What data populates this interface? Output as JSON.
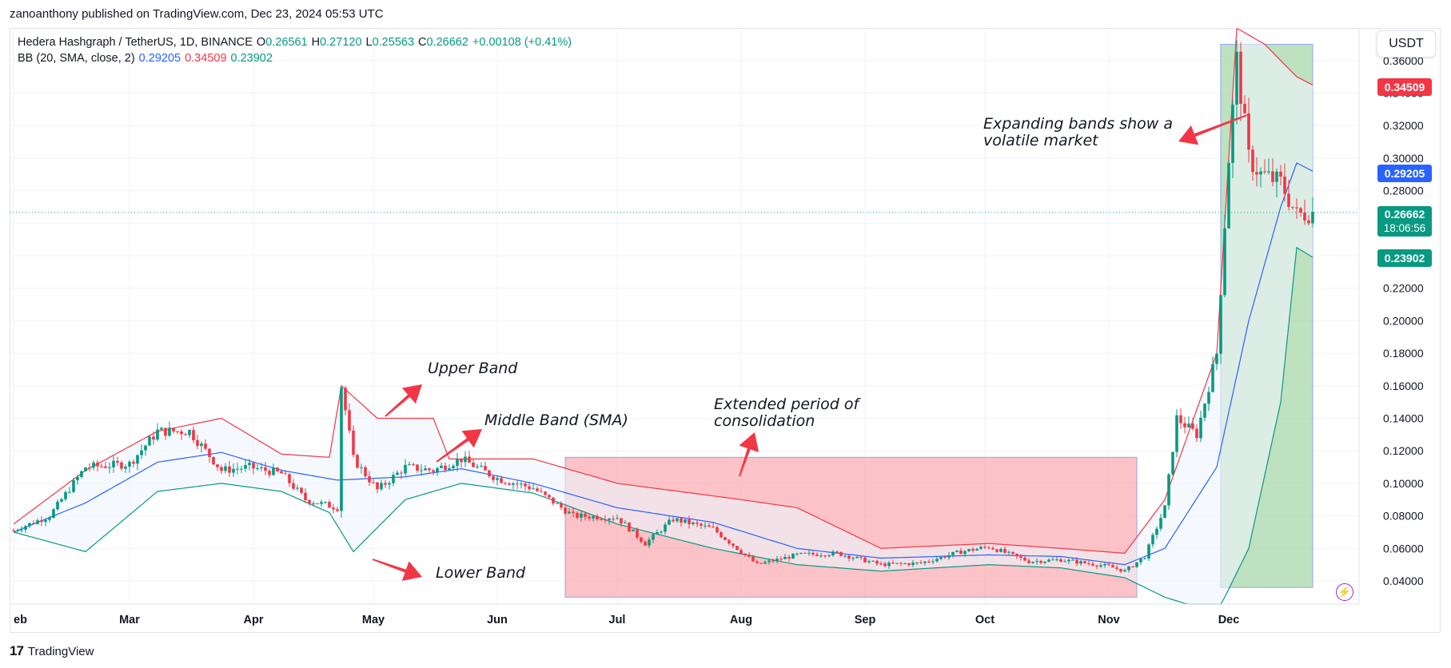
{
  "header": {
    "credit": "zanoanthony published on TradingView.com, Dec 23, 2024 05:53 UTC"
  },
  "legend": {
    "symbol": "Hedera Hashgraph / TetherUS, 1D, BINANCE",
    "o_label": "O",
    "o": "0.26561",
    "h_label": "H",
    "h": "0.27120",
    "l_label": "L",
    "l": "0.25563",
    "c_label": "C",
    "c": "0.26662",
    "change": "+0.00108 (+0.41%)",
    "bb_label": "BB (20, SMA, close, 2)",
    "bb_mid": "0.29205",
    "bb_upper": "0.34509",
    "bb_lower": "0.23902"
  },
  "currency": "USDT",
  "price_tags": {
    "upper": "0.34509",
    "middle": "0.29205",
    "last": "0.26662",
    "countdown": "18:06:56",
    "lower": "0.23902"
  },
  "annotations": {
    "upper_band": "Upper Band",
    "middle_band": "Middle Band (SMA)",
    "lower_band": "Lower Band",
    "consolidation_1": "Extended period of",
    "consolidation_2": "consolidation",
    "expanding_1": "Expanding bands show a",
    "expanding_2": "volatile market"
  },
  "footer": {
    "brand": "TradingView"
  },
  "colors": {
    "up": "#089981",
    "down": "#f23645",
    "sma": "#2962ff",
    "upper": "#f23645",
    "lower": "#089981",
    "band_fill": "#eef5fd",
    "red_zone": "#f9aab1",
    "green_zone": "#a5d6a7",
    "arrow": "#f23645"
  },
  "chart_data": {
    "type": "candlestick",
    "title": "Hedera Hashgraph / TetherUS, 1D, BINANCE",
    "ylim": [
      0.03,
      0.37
    ],
    "y_ticks": [
      "0.04000",
      "0.06000",
      "0.08000",
      "0.10000",
      "0.12000",
      "0.14000",
      "0.16000",
      "0.18000",
      "0.20000",
      "0.22000",
      "0.24000",
      "0.26000",
      "0.28000",
      "0.30000",
      "0.32000",
      "0.34000",
      "0.36000"
    ],
    "x_ticks": [
      "eb",
      "Mar",
      "Apr",
      "May",
      "Jun",
      "Jul",
      "Aug",
      "Sep",
      "Oct",
      "Nov",
      "Dec"
    ],
    "grid": true,
    "highlight_zones": [
      {
        "name": "consolidation",
        "from": "Jun 18",
        "to": "Nov 8",
        "y_range": [
          0.03,
          0.116
        ],
        "color": "red"
      },
      {
        "name": "volatile",
        "from": "Nov 29",
        "to": "Dec 22",
        "y_range": [
          0.036,
          0.37
        ],
        "color": "green"
      }
    ],
    "series": [
      {
        "name": "Price (close)",
        "control": [
          [
            "Feb 1",
            0.071
          ],
          [
            "Feb 10",
            0.08
          ],
          [
            "Feb 19",
            0.11
          ],
          [
            "Mar 1",
            0.112
          ],
          [
            "Mar 8",
            0.132
          ],
          [
            "Mar 16",
            0.132
          ],
          [
            "Mar 24",
            0.108
          ],
          [
            "Mar 31",
            0.11
          ],
          [
            "Apr 8",
            0.106
          ],
          [
            "Apr 14",
            0.09
          ],
          [
            "Apr 22",
            0.085
          ],
          [
            "Apr 23",
            0.16
          ],
          [
            "Apr 26",
            0.115
          ],
          [
            "May 2",
            0.096
          ],
          [
            "May 9",
            0.11
          ],
          [
            "May 16",
            0.108
          ],
          [
            "May 23",
            0.115
          ],
          [
            "Jun 1",
            0.103
          ],
          [
            "Jun 10",
            0.097
          ],
          [
            "Jun 20",
            0.08
          ],
          [
            "Jul 1",
            0.079
          ],
          [
            "Jul 8",
            0.063
          ],
          [
            "Jul 15",
            0.078
          ],
          [
            "Jul 25",
            0.072
          ],
          [
            "Aug 5",
            0.05
          ],
          [
            "Aug 15",
            0.056
          ],
          [
            "Aug 25",
            0.057
          ],
          [
            "Sep 5",
            0.05
          ],
          [
            "Sep 15",
            0.051
          ],
          [
            "Sep 25",
            0.058
          ],
          [
            "Oct 2",
            0.061
          ],
          [
            "Oct 12",
            0.052
          ],
          [
            "Oct 20",
            0.053
          ],
          [
            "Nov 1",
            0.049
          ],
          [
            "Nov 5",
            0.046
          ],
          [
            "Nov 10",
            0.055
          ],
          [
            "Nov 15",
            0.085
          ],
          [
            "Nov 18",
            0.14
          ],
          [
            "Nov 23",
            0.13
          ],
          [
            "Nov 28",
            0.18
          ],
          [
            "Dec 1",
            0.3
          ],
          [
            "Dec 3",
            0.36
          ],
          [
            "Dec 6",
            0.3
          ],
          [
            "Dec 9",
            0.29
          ],
          [
            "Dec 14",
            0.285
          ],
          [
            "Dec 18",
            0.265
          ],
          [
            "Dec 22",
            0.2666
          ]
        ]
      },
      {
        "name": "BB basis",
        "control": [
          [
            "Feb 1",
            0.07
          ],
          [
            "Feb 19",
            0.088
          ],
          [
            "Mar 8",
            0.113
          ],
          [
            "Mar 24",
            0.119
          ],
          [
            "Apr 8",
            0.108
          ],
          [
            "Apr 22",
            0.102
          ],
          [
            "May 9",
            0.104
          ],
          [
            "May 23",
            0.109
          ],
          [
            "Jun 10",
            0.1
          ],
          [
            "Jul 1",
            0.085
          ],
          [
            "Jul 25",
            0.076
          ],
          [
            "Aug 15",
            0.06
          ],
          [
            "Sep 5",
            0.054
          ],
          [
            "Oct 2",
            0.056
          ],
          [
            "Oct 20",
            0.055
          ],
          [
            "Nov 5",
            0.05
          ],
          [
            "Nov 15",
            0.06
          ],
          [
            "Nov 28",
            0.11
          ],
          [
            "Dec 6",
            0.2
          ],
          [
            "Dec 14",
            0.27
          ],
          [
            "Dec 18",
            0.297
          ],
          [
            "Dec 22",
            0.292
          ]
        ]
      },
      {
        "name": "BB upper",
        "control": [
          [
            "Feb 1",
            0.075
          ],
          [
            "Feb 19",
            0.108
          ],
          [
            "Mar 8",
            0.132
          ],
          [
            "Mar 24",
            0.14
          ],
          [
            "Apr 8",
            0.118
          ],
          [
            "Apr 20",
            0.116
          ],
          [
            "Apr 23",
            0.16
          ],
          [
            "May 2",
            0.14
          ],
          [
            "May 16",
            0.14
          ],
          [
            "May 20",
            0.115
          ],
          [
            "Jun 10",
            0.115
          ],
          [
            "Jul 1",
            0.1
          ],
          [
            "Aug 1",
            0.09
          ],
          [
            "Aug 15",
            0.085
          ],
          [
            "Sep 5",
            0.06
          ],
          [
            "Oct 2",
            0.063
          ],
          [
            "Oct 20",
            0.06
          ],
          [
            "Nov 5",
            0.057
          ],
          [
            "Nov 15",
            0.09
          ],
          [
            "Nov 28",
            0.18
          ],
          [
            "Dec 3",
            0.38
          ],
          [
            "Dec 10",
            0.37
          ],
          [
            "Dec 18",
            0.35
          ],
          [
            "Dec 22",
            0.345
          ]
        ]
      },
      {
        "name": "BB lower",
        "control": [
          [
            "Feb 1",
            0.07
          ],
          [
            "Feb 19",
            0.058
          ],
          [
            "Mar 8",
            0.095
          ],
          [
            "Mar 24",
            0.1
          ],
          [
            "Apr 8",
            0.095
          ],
          [
            "Apr 20",
            0.082
          ],
          [
            "Apr 26",
            0.058
          ],
          [
            "May 9",
            0.09
          ],
          [
            "May 23",
            0.1
          ],
          [
            "Jun 10",
            0.094
          ],
          [
            "Jul 1",
            0.075
          ],
          [
            "Jul 25",
            0.06
          ],
          [
            "Aug 15",
            0.05
          ],
          [
            "Sep 5",
            0.046
          ],
          [
            "Oct 2",
            0.05
          ],
          [
            "Oct 20",
            0.048
          ],
          [
            "Nov 5",
            0.042
          ],
          [
            "Nov 15",
            0.03
          ],
          [
            "Nov 28",
            0.02
          ],
          [
            "Dec 6",
            0.06
          ],
          [
            "Dec 14",
            0.15
          ],
          [
            "Dec 18",
            0.245
          ],
          [
            "Dec 22",
            0.239
          ]
        ]
      }
    ]
  }
}
